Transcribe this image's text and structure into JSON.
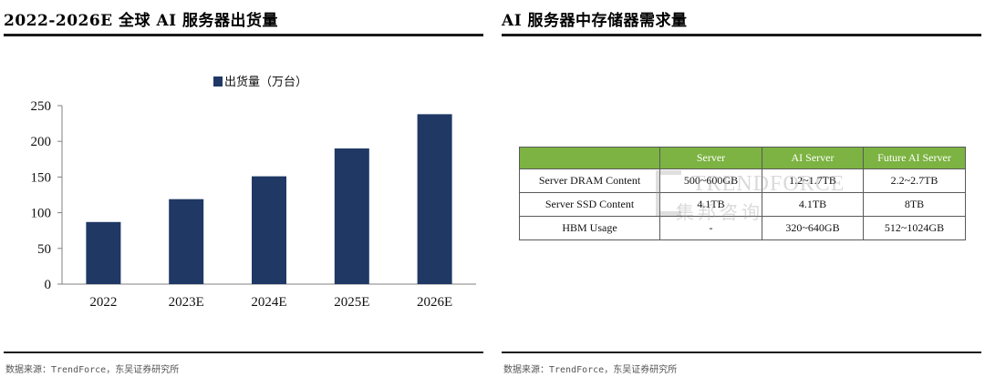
{
  "left_panel": {
    "title": "2022-2026E 全球 AI 服务器出货量",
    "source": "数据来源：TrendForce，东吴证券研究所"
  },
  "right_panel": {
    "title": "AI 服务器中存储器需求量",
    "source": "数据来源：TrendForce，东吴证券研究所",
    "table": {
      "headers": [
        "",
        "Server",
        "AI Server",
        "Future AI Server"
      ],
      "rows": [
        [
          "Server DRAM Content",
          "500~600GB",
          "1.2~1.7TB",
          "2.2~2.7TB"
        ],
        [
          "Server SSD Content",
          "4.1TB",
          "4.1TB",
          "8TB"
        ],
        [
          "HBM Usage",
          "-",
          "320~640GB",
          "512~1024GB"
        ]
      ],
      "header_color": "#7cb342"
    },
    "watermark": {
      "line1": "TRENDFORCE",
      "line2": "集邦咨询"
    }
  },
  "chart_data": {
    "type": "bar",
    "title": "",
    "categories": [
      "2022",
      "2023E",
      "2024E",
      "2025E",
      "2026E"
    ],
    "series": [
      {
        "name": "出货量（万台）",
        "values": [
          87,
          119,
          151,
          190,
          238
        ],
        "color": "#1f3864"
      }
    ],
    "xlabel": "",
    "ylabel": "",
    "ylim": [
      0,
      250
    ],
    "yticks": [
      0,
      50,
      100,
      150,
      200,
      250
    ],
    "legend": "top-center",
    "grid": false
  }
}
